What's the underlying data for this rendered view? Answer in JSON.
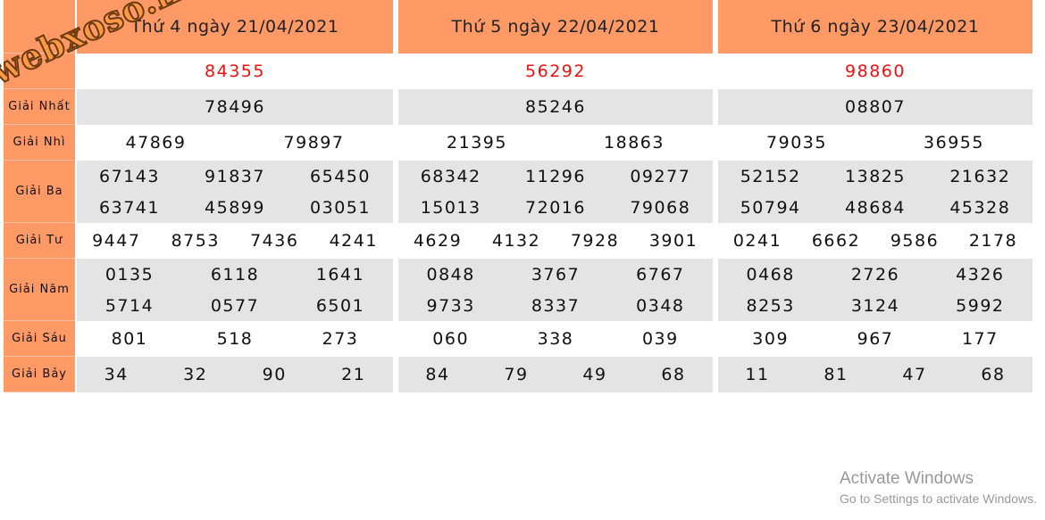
{
  "watermark": "webxoso.net",
  "row_labels": [
    "",
    "",
    "Giải Nhất",
    "Giải Nhì",
    "Giải Ba",
    "Giải Tư",
    "Giải Năm",
    "Giải Sáu",
    "Giải Bảy"
  ],
  "days": [
    {
      "title": "Thứ 4 ngày 21/04/2021",
      "special": [
        "84355"
      ],
      "g1": [
        "78496"
      ],
      "g2": [
        "47869",
        "79897"
      ],
      "g3": [
        "67143",
        "91837",
        "65450",
        "63741",
        "45899",
        "03051"
      ],
      "g4": [
        "9447",
        "8753",
        "7436",
        "4241"
      ],
      "g5": [
        "0135",
        "6118",
        "1641",
        "5714",
        "0577",
        "6501"
      ],
      "g6": [
        "801",
        "518",
        "273"
      ],
      "g7": [
        "34",
        "32",
        "90",
        "21"
      ]
    },
    {
      "title": "Thứ 5 ngày 22/04/2021",
      "special": [
        "56292"
      ],
      "g1": [
        "85246"
      ],
      "g2": [
        "21395",
        "18863"
      ],
      "g3": [
        "68342",
        "11296",
        "09277",
        "15013",
        "72016",
        "79068"
      ],
      "g4": [
        "4629",
        "4132",
        "7928",
        "3901"
      ],
      "g5": [
        "0848",
        "3767",
        "6767",
        "9733",
        "8337",
        "0348"
      ],
      "g6": [
        "060",
        "338",
        "039"
      ],
      "g7": [
        "84",
        "79",
        "49",
        "68"
      ]
    },
    {
      "title": "Thứ 6 ngày 23/04/2021",
      "special": [
        "98860"
      ],
      "g1": [
        "08807"
      ],
      "g2": [
        "79035",
        "36955"
      ],
      "g3": [
        "52152",
        "13825",
        "21632",
        "50794",
        "48684",
        "45328"
      ],
      "g4": [
        "0241",
        "6662",
        "9586",
        "2178"
      ],
      "g5": [
        "0468",
        "2726",
        "4326",
        "8253",
        "3124",
        "5992"
      ],
      "g6": [
        "309",
        "967",
        "177"
      ],
      "g7": [
        "11",
        "81",
        "47",
        "68"
      ]
    }
  ],
  "os": {
    "activate_title": "Activate Windows",
    "activate_sub": "Go to Settings to activate Windows."
  },
  "colors": {
    "header": "#FF9966",
    "alt_row": "#E4E4E4",
    "special": "#EE1111"
  }
}
